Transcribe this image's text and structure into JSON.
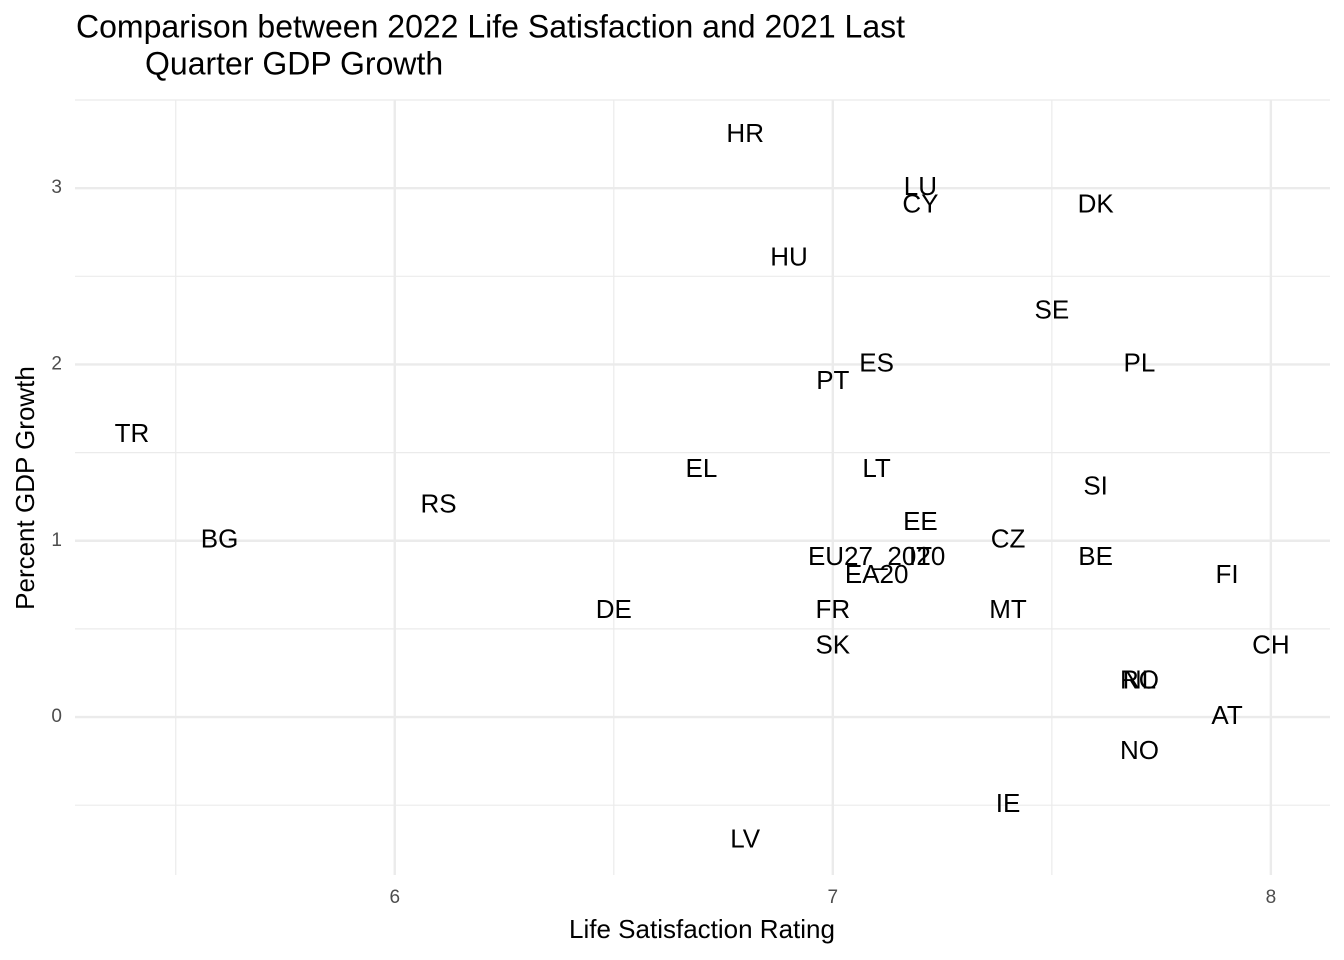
{
  "chart_data": {
    "type": "scatter",
    "title": [
      "Comparison between 2022 Life Satisfaction and 2021 Last",
      "Quarter GDP Growth"
    ],
    "x_label": "Life Satisfaction Rating",
    "y_label": "Percent GDP Growth",
    "labels": [
      "HR",
      "LU",
      "CY",
      "DK",
      "HU",
      "SE",
      "ES",
      "PL",
      "PT",
      "TR",
      "EL",
      "LT",
      "SI",
      "RS",
      "EE",
      "BG",
      "CZ",
      "EU27_2020",
      "IT",
      "BE",
      "EA20",
      "FI",
      "DE",
      "FR",
      "MT",
      "SK",
      "CH",
      "NL",
      "RO",
      "AT",
      "NO",
      "IE",
      "LV"
    ],
    "x": [
      6.8,
      7.2,
      7.2,
      7.6,
      6.9,
      7.5,
      7.1,
      7.7,
      7.0,
      5.4,
      6.7,
      7.1,
      7.6,
      6.1,
      7.2,
      5.6,
      7.4,
      7.1,
      7.2,
      7.6,
      7.1,
      7.9,
      6.5,
      7.0,
      7.4,
      7.0,
      8.0,
      7.7,
      7.7,
      7.9,
      7.7,
      7.4,
      6.8
    ],
    "y": [
      3.3,
      3.0,
      2.9,
      2.9,
      2.6,
      2.3,
      2.0,
      2.0,
      1.9,
      1.6,
      1.4,
      1.4,
      1.3,
      1.2,
      1.1,
      1.0,
      1.0,
      0.9,
      0.9,
      0.9,
      0.8,
      0.8,
      0.6,
      0.6,
      0.6,
      0.4,
      0.4,
      0.2,
      0.2,
      0.0,
      -0.2,
      -0.5,
      -0.7
    ],
    "color": "#000000",
    "xlim": [
      5.27,
      8.135
    ],
    "ylim": [
      -0.896,
      3.5
    ],
    "xticks": [
      6,
      7,
      8
    ],
    "yticks": [
      0,
      1,
      2,
      3
    ],
    "x_minor_ticks": [
      5.5,
      6.5,
      7.5
    ],
    "y_minor_ticks": [
      -0.5,
      0.5,
      1.5,
      2.5,
      3.5
    ],
    "grid": true
  }
}
